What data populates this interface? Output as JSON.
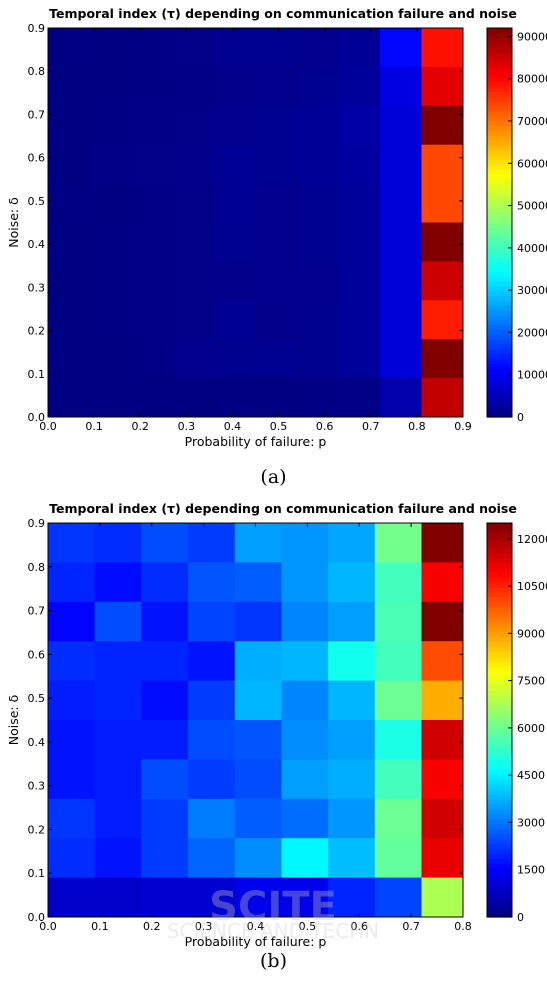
{
  "chart_data": [
    {
      "type": "heatmap",
      "title": "Temporal index (τ) depending on communication failure and noise",
      "xlabel": "Probability of failure: p",
      "ylabel": "Noise: δ",
      "x_edges": [
        0.0,
        0.09,
        0.18,
        0.27,
        0.36,
        0.45,
        0.54,
        0.63,
        0.72,
        0.81,
        0.9
      ],
      "y_edges": [
        0.0,
        0.09,
        0.18,
        0.27,
        0.36,
        0.45,
        0.54,
        0.63,
        0.72,
        0.81,
        0.9
      ],
      "xticks": [
        "0.0",
        "0.1",
        "0.2",
        "0.3",
        "0.4",
        "0.5",
        "0.6",
        "0.7",
        "0.8",
        "0.9"
      ],
      "yticks": [
        "0.0",
        "0.1",
        "0.2",
        "0.3",
        "0.4",
        "0.5",
        "0.6",
        "0.7",
        "0.8",
        "0.9"
      ],
      "xlim": [
        0,
        0.9
      ],
      "ylim": [
        0,
        0.9
      ],
      "colorbar": {
        "min": 0,
        "max": 92000,
        "ticks": [
          "0",
          "10000",
          "20000",
          "30000",
          "40000",
          "50000",
          "60000",
          "70000",
          "80000",
          "90000"
        ]
      },
      "z_rows_top_to_bottom": [
        [
          400,
          300,
          500,
          800,
          1500,
          1600,
          1200,
          2000,
          12000,
          79000
        ],
        [
          300,
          200,
          400,
          600,
          1000,
          1200,
          1500,
          2500,
          9000,
          83000
        ],
        [
          200,
          500,
          700,
          900,
          1100,
          1500,
          2000,
          3500,
          8000,
          92000
        ],
        [
          300,
          600,
          800,
          1000,
          2000,
          1500,
          2000,
          3000,
          8000,
          74000
        ],
        [
          400,
          300,
          600,
          800,
          1800,
          1200,
          1500,
          2500,
          8000,
          74000
        ],
        [
          300,
          500,
          700,
          900,
          1600,
          1200,
          1500,
          2500,
          8000,
          92000
        ],
        [
          200,
          400,
          600,
          800,
          1000,
          1100,
          1200,
          2500,
          8000,
          85000
        ],
        [
          300,
          500,
          700,
          900,
          1800,
          1000,
          1400,
          2500,
          8000,
          78000
        ],
        [
          200,
          300,
          700,
          1200,
          1400,
          1600,
          1400,
          2500,
          8000,
          92000
        ],
        [
          300,
          200,
          100,
          100,
          200,
          300,
          500,
          600,
          4000,
          86000
        ]
      ]
    },
    {
      "type": "heatmap",
      "title": "Temporal index (τ) depending on communication failure and noise",
      "xlabel": "Probability of failure: p",
      "ylabel": "Noise: δ",
      "x_edges": [
        0.0,
        0.09,
        0.18,
        0.27,
        0.36,
        0.45,
        0.54,
        0.63,
        0.72,
        0.8
      ],
      "y_edges": [
        0.0,
        0.09,
        0.18,
        0.27,
        0.36,
        0.45,
        0.54,
        0.63,
        0.72,
        0.81,
        0.9
      ],
      "xticks": [
        "0.0",
        "0.1",
        "0.2",
        "0.3",
        "0.4",
        "0.5",
        "0.6",
        "0.7",
        "0.8"
      ],
      "yticks": [
        "0.0",
        "0.1",
        "0.2",
        "0.3",
        "0.4",
        "0.5",
        "0.6",
        "0.7",
        "0.8",
        "0.9"
      ],
      "xlim": [
        0,
        0.8
      ],
      "ylim": [
        0,
        0.9
      ],
      "colorbar": {
        "min": 0,
        "max": 12500,
        "ticks": [
          "0",
          "1500",
          "3000",
          "4500",
          "6000",
          "7500",
          "9000",
          "10500",
          "12000"
        ]
      },
      "z_rows_top_to_bottom": [
        [
          2200,
          2100,
          2500,
          2300,
          3500,
          3400,
          3600,
          6100,
          12500
        ],
        [
          2000,
          1700,
          2100,
          2600,
          2700,
          3400,
          3800,
          5500,
          11000
        ],
        [
          1600,
          2500,
          1800,
          2400,
          2200,
          3200,
          3500,
          5600,
          12500
        ],
        [
          2100,
          2000,
          2000,
          1800,
          3700,
          3800,
          4900,
          5500,
          10000
        ],
        [
          1900,
          2000,
          1700,
          2300,
          3800,
          3200,
          3800,
          6000,
          8800
        ],
        [
          1800,
          1900,
          1900,
          2500,
          2600,
          3300,
          3500,
          5000,
          11500
        ],
        [
          1800,
          1900,
          2500,
          2300,
          2500,
          3500,
          3700,
          5500,
          11000
        ],
        [
          2200,
          1900,
          2300,
          3100,
          2700,
          2900,
          3400,
          6000,
          11500
        ],
        [
          2100,
          1800,
          2300,
          2800,
          3300,
          4600,
          3900,
          5900,
          11200
        ],
        [
          900,
          900,
          1000,
          1000,
          1300,
          1300,
          2000,
          2400,
          6800
        ]
      ]
    }
  ],
  "captions": {
    "a": "(a)",
    "b": "(b)"
  },
  "watermark": {
    "line1": "SCITE",
    "line2": "SCIENCE AND TECHN"
  },
  "colors": {
    "background": "#ffffff",
    "axis": "#000000"
  }
}
